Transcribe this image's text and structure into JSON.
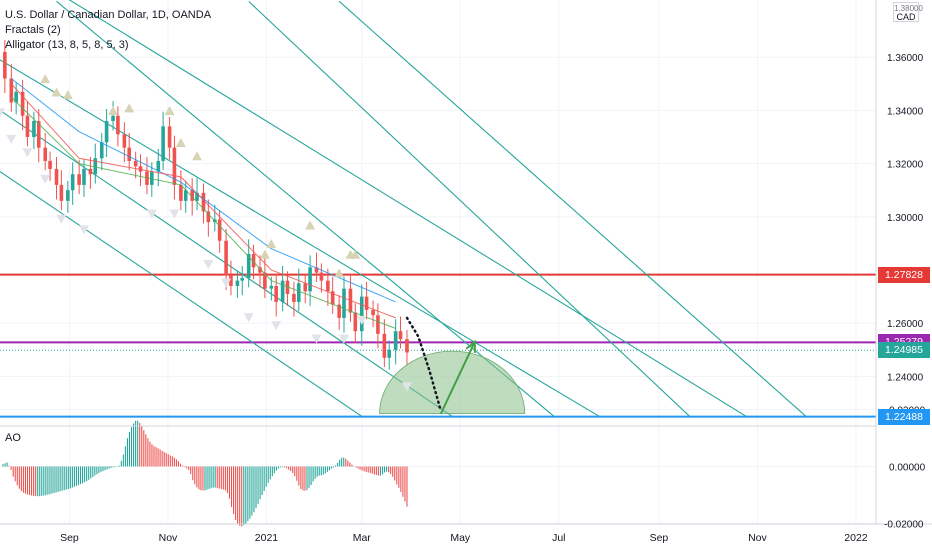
{
  "header": {
    "symbol_title": "U.S. Dollar / Canadian Dollar, 1D, OANDA",
    "indicator_1": "Fractals (2)",
    "indicator_2": "Alligator (13, 8, 5, 8, 5, 3)",
    "currency_unit": "CAD",
    "currency_unit_top": "1.38000"
  },
  "oscillator": {
    "label": "AO"
  },
  "colors": {
    "channel": "#26a69a",
    "up_candle": "#26a69a",
    "down_candle": "#ef5350",
    "resistance": "#e53935",
    "pivot": "#9c27b0",
    "support": "#2196f3",
    "forecast_arrow": "#43a047",
    "ellipse": "#8bbf8b",
    "jaw": "#2196f3",
    "teeth": "#ef5350",
    "lips": "#4caf50",
    "fractal": "#d8d3b5"
  },
  "chart_data": [
    {
      "type": "line",
      "title": "U.S. Dollar / Canadian Dollar, 1D, OANDA",
      "y_axis_ticks": [
        "1.36000",
        "1.34000",
        "1.32000",
        "1.30000",
        "1.26000",
        "1.24000"
      ],
      "x_axis_ticks": [
        "Sep",
        "Nov",
        "2021",
        "Mar",
        "May",
        "Jul",
        "Sep",
        "Nov",
        "2022"
      ],
      "ylim": [
        1.2215,
        1.3815
      ],
      "price_series": [
        [
          "2020-07-20",
          1.362
        ],
        [
          "2020-07-23",
          1.352
        ],
        [
          "2020-07-27",
          1.343
        ],
        [
          "2020-07-30",
          1.347
        ],
        [
          "2020-08-03",
          1.338
        ],
        [
          "2020-08-06",
          1.33
        ],
        [
          "2020-08-10",
          1.336
        ],
        [
          "2020-08-13",
          1.326
        ],
        [
          "2020-08-17",
          1.321
        ],
        [
          "2020-08-20",
          1.318
        ],
        [
          "2020-08-24",
          1.312
        ],
        [
          "2020-08-27",
          1.306
        ],
        [
          "2020-08-31",
          1.31
        ],
        [
          "2020-09-03",
          1.316
        ],
        [
          "2020-09-07",
          1.312
        ],
        [
          "2020-09-10",
          1.318
        ],
        [
          "2020-09-14",
          1.316
        ],
        [
          "2020-09-17",
          1.322
        ],
        [
          "2020-09-21",
          1.328
        ],
        [
          "2020-09-24",
          1.336
        ],
        [
          "2020-09-28",
          1.338
        ],
        [
          "2020-10-01",
          1.331
        ],
        [
          "2020-10-05",
          1.326
        ],
        [
          "2020-10-08",
          1.321
        ],
        [
          "2020-10-12",
          1.319
        ],
        [
          "2020-10-15",
          1.317
        ],
        [
          "2020-10-19",
          1.312
        ],
        [
          "2020-10-22",
          1.317
        ],
        [
          "2020-10-26",
          1.321
        ],
        [
          "2020-10-29",
          1.334
        ],
        [
          "2020-11-02",
          1.326
        ],
        [
          "2020-11-05",
          1.312
        ],
        [
          "2020-11-09",
          1.306
        ],
        [
          "2020-11-12",
          1.31
        ],
        [
          "2020-11-16",
          1.306
        ],
        [
          "2020-11-19",
          1.309
        ],
        [
          "2020-11-23",
          1.302
        ],
        [
          "2020-11-26",
          1.298
        ],
        [
          "2020-11-30",
          1.299
        ],
        [
          "2020-12-03",
          1.291
        ],
        [
          "2020-12-07",
          1.278
        ],
        [
          "2020-12-10",
          1.274
        ],
        [
          "2020-12-14",
          1.276
        ],
        [
          "2020-12-17",
          1.277
        ],
        [
          "2020-12-21",
          1.286
        ],
        [
          "2020-12-24",
          1.281
        ],
        [
          "2020-12-28",
          1.279
        ],
        [
          "2020-12-31",
          1.273
        ],
        [
          "2021-01-04",
          1.274
        ],
        [
          "2021-01-07",
          1.268
        ],
        [
          "2021-01-11",
          1.276
        ],
        [
          "2021-01-14",
          1.271
        ],
        [
          "2021-01-18",
          1.268
        ],
        [
          "2021-01-21",
          1.275
        ],
        [
          "2021-01-25",
          1.272
        ],
        [
          "2021-01-28",
          1.281
        ],
        [
          "2021-02-01",
          1.279
        ],
        [
          "2021-02-04",
          1.276
        ],
        [
          "2021-02-08",
          1.272
        ],
        [
          "2021-02-11",
          1.267
        ],
        [
          "2021-02-15",
          1.262
        ],
        [
          "2021-02-18",
          1.273
        ],
        [
          "2021-02-22",
          1.264
        ],
        [
          "2021-02-25",
          1.257
        ],
        [
          "2021-03-01",
          1.27
        ],
        [
          "2021-03-04",
          1.265
        ],
        [
          "2021-03-08",
          1.263
        ],
        [
          "2021-03-11",
          1.256
        ],
        [
          "2021-03-15",
          1.247
        ],
        [
          "2021-03-18",
          1.25
        ],
        [
          "2021-03-22",
          1.257
        ],
        [
          "2021-03-25",
          1.254
        ],
        [
          "2021-03-29",
          1.249
        ]
      ],
      "series": [
        {
          "name": "Alligator Jaw",
          "values": [
            [
              1.352,
              "2020-07-27"
            ],
            [
              1.332,
              "2020-09-07"
            ],
            [
              1.313,
              "2020-11-09"
            ],
            [
              1.288,
              "2021-01-04"
            ],
            [
              1.268,
              "2021-03-22"
            ]
          ]
        },
        {
          "name": "Alligator Teeth",
          "values": [
            [
              1.35,
              "2020-07-27"
            ],
            [
              1.322,
              "2020-09-07"
            ],
            [
              1.315,
              "2020-11-09"
            ],
            [
              1.28,
              "2021-01-04"
            ],
            [
              1.262,
              "2021-03-22"
            ]
          ]
        },
        {
          "name": "Alligator Lips",
          "values": [
            [
              1.345,
              "2020-07-27"
            ],
            [
              1.32,
              "2020-09-07"
            ],
            [
              1.312,
              "2020-11-09"
            ],
            [
              1.276,
              "2021-01-04"
            ],
            [
              1.258,
              "2021-03-22"
            ]
          ]
        }
      ],
      "fractals_up": [
        [
          "2020-08-17",
          1.351
        ],
        [
          "2020-08-24",
          1.346
        ],
        [
          "2020-08-31",
          1.345
        ],
        [
          "2020-09-28",
          1.339
        ],
        [
          "2020-10-08",
          1.34
        ],
        [
          "2020-11-02",
          1.339
        ],
        [
          "2020-11-09",
          1.327
        ],
        [
          "2020-11-19",
          1.322
        ],
        [
          "2020-12-31",
          1.285
        ],
        [
          "2021-01-04",
          1.289
        ],
        [
          "2021-01-28",
          1.296
        ],
        [
          "2021-02-15",
          1.278
        ],
        [
          "2021-02-22",
          1.285
        ],
        [
          "2021-02-25",
          1.285
        ]
      ],
      "fractals_down": [
        [
          "2020-07-20",
          1.34
        ],
        [
          "2020-07-27",
          1.33
        ],
        [
          "2020-08-06",
          1.325
        ],
        [
          "2020-08-17",
          1.315
        ],
        [
          "2020-08-27",
          1.3
        ],
        [
          "2020-09-10",
          1.296
        ],
        [
          "2020-10-22",
          1.302
        ],
        [
          "2020-11-05",
          1.302
        ],
        [
          "2020-11-26",
          1.283
        ],
        [
          "2020-12-07",
          1.276
        ],
        [
          "2020-12-21",
          1.263
        ],
        [
          "2021-01-07",
          1.26
        ],
        [
          "2021-02-01",
          1.255
        ],
        [
          "2021-02-18",
          1.255
        ],
        [
          "2021-03-01",
          1.262
        ],
        [
          "2021-03-29",
          1.237
        ]
      ],
      "horizontal_levels": [
        {
          "label": "1.27828",
          "value": 1.27828
        },
        {
          "label": "1.25279",
          "value": 1.25279
        },
        {
          "label": "1.24985",
          "value": 1.24985
        },
        {
          "label": "1.22488",
          "value": 1.22488
        }
      ],
      "channel_lines": [
        {
          "from": [
            "2020-07-27",
            1.395
          ],
          "to": [
            "2021-10-25",
            1.225
          ]
        },
        {
          "from": [
            "2020-07-20",
            1.359
          ],
          "to": [
            "2021-07-26",
            1.225
          ]
        },
        {
          "from": [
            "2020-07-20",
            1.34
          ],
          "to": [
            "2021-04-26",
            1.225
          ]
        },
        {
          "from": [
            "2020-07-20",
            1.317
          ],
          "to": [
            "2021-03-01",
            1.225
          ]
        },
        {
          "from": [
            "2021-02-15",
            1.381
          ],
          "to": [
            "2021-12-01",
            1.225
          ]
        },
        {
          "from": [
            "2020-12-21",
            1.381
          ],
          "to": [
            "2021-09-20",
            1.225
          ]
        },
        {
          "from": [
            "2020-08-24",
            1.381
          ],
          "to": [
            "2021-06-28",
            1.225
          ]
        }
      ],
      "projection": {
        "dotted_path": [
          [
            "2021-03-29",
            1.262
          ],
          [
            "2021-04-05",
            1.255
          ],
          [
            "2021-04-12",
            1.242
          ],
          [
            "2021-04-19",
            1.227
          ]
        ],
        "arrow": {
          "from": [
            "2021-04-19",
            1.226
          ],
          "to": [
            "2021-05-10",
            1.253
          ]
        },
        "target_zone": {
          "center": [
            "2021-04-26",
            1.226
          ],
          "price_span": 0.0235,
          "time_span_days": 29
        }
      }
    },
    {
      "type": "bar",
      "title": "AO",
      "y_axis_ticks": [
        "0.02000",
        "0.00000",
        "-0.02000"
      ],
      "ylim": [
        -0.0255,
        0.0255
      ],
      "values": [
        0.0008,
        0.0011,
        0.0014,
        0.0003,
        -0.0012,
        -0.0036,
        -0.0052,
        -0.0066,
        -0.0078,
        -0.0086,
        -0.0092,
        -0.0095,
        -0.0098,
        -0.01,
        -0.0102,
        -0.0103,
        -0.0104,
        -0.0104,
        -0.0104,
        -0.0103,
        -0.0102,
        -0.0101,
        -0.0099,
        -0.0097,
        -0.0095,
        -0.0093,
        -0.0091,
        -0.0089,
        -0.0087,
        -0.0085,
        -0.0083,
        -0.0081,
        -0.0079,
        -0.0077,
        -0.0074,
        -0.0071,
        -0.0068,
        -0.0065,
        -0.0062,
        -0.0059,
        -0.0055,
        -0.0051,
        -0.0047,
        -0.0042,
        -0.0037,
        -0.0032,
        -0.0027,
        -0.0023,
        -0.0019,
        -0.0016,
        -0.0013,
        -0.001,
        -0.0007,
        -0.0005,
        -0.0003,
        -0.0002,
        -0.0001,
        0.0003,
        0.002,
        0.0042,
        0.0071,
        0.0099,
        0.0121,
        0.0138,
        0.0151,
        0.016,
        0.0161,
        0.0153,
        0.0141,
        0.0127,
        0.0113,
        0.0099,
        0.0087,
        0.0078,
        0.0072,
        0.0068,
        0.0064,
        0.006,
        0.0055,
        0.0051,
        0.0047,
        0.0043,
        0.0039,
        0.0036,
        0.0031,
        0.0025,
        0.0018,
        0.001,
        0.0003,
        -0.0002,
        -0.0006,
        -0.0012,
        -0.0027,
        -0.0048,
        -0.0062,
        -0.0073,
        -0.008,
        -0.0083,
        -0.0084,
        -0.0084,
        -0.0081,
        -0.0079,
        -0.0076,
        -0.0074,
        -0.0074,
        -0.0075,
        -0.0077,
        -0.0079,
        -0.0081,
        -0.0084,
        -0.0093,
        -0.0113,
        -0.0142,
        -0.0167,
        -0.0188,
        -0.0202,
        -0.0208,
        -0.021,
        -0.0206,
        -0.02,
        -0.0192,
        -0.0183,
        -0.0172,
        -0.016,
        -0.0146,
        -0.0131,
        -0.0115,
        -0.01,
        -0.0086,
        -0.0071,
        -0.0057,
        -0.0045,
        -0.0034,
        -0.0024,
        -0.0014,
        -0.0007,
        -0.0003,
        -0.0002,
        -0.0003,
        -0.0006,
        -0.0011,
        -0.0016,
        -0.0023,
        -0.0034,
        -0.005,
        -0.0067,
        -0.0079,
        -0.0084,
        -0.0085,
        -0.0083,
        -0.0075,
        -0.0065,
        -0.0053,
        -0.0043,
        -0.0036,
        -0.0032,
        -0.0031,
        -0.0028,
        -0.0024,
        -0.0019,
        -0.0013,
        -0.0008,
        -0.0003,
        0.0004,
        0.0013,
        0.0024,
        0.0031,
        0.0031,
        0.0027,
        0.0021,
        0.0014,
        0.0007,
        0.0001,
        -0.0003,
        -0.0007,
        -0.0011,
        -0.0014,
        -0.0017,
        -0.0019,
        -0.0021,
        -0.0023,
        -0.0025,
        -0.0028,
        -0.003,
        -0.0032,
        -0.0032,
        -0.0027,
        -0.0021,
        -0.0018,
        -0.002,
        -0.0026,
        -0.0036,
        -0.0049,
        -0.0063,
        -0.0075,
        -0.0089,
        -0.0106,
        -0.0123,
        -0.0141
      ]
    }
  ]
}
